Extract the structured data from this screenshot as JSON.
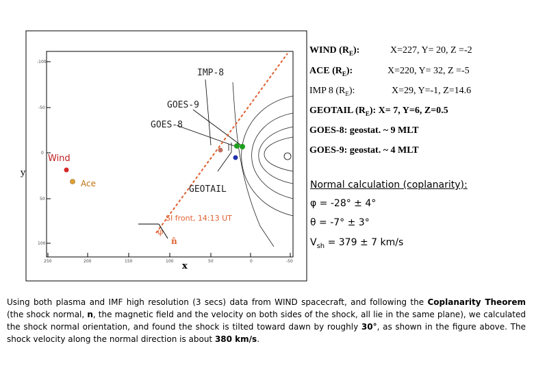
{
  "plot": {
    "axis_y_label": "y",
    "axis_x_label": "x",
    "y_ticks": [
      "-100",
      "-50",
      "0",
      "50",
      "100"
    ],
    "x_ticks": [
      "250",
      "200",
      "150",
      "100",
      "50",
      "0",
      "-50"
    ],
    "labels": {
      "imp8": "IMP-8",
      "goes9": "GOES-9",
      "goes8": "GOES-8",
      "wind": "Wind",
      "ace": "Ace",
      "geotail": "GEOTAIL",
      "si_front": "SI front, 14:13 UT",
      "phi": "φ",
      "normal": "n̂"
    },
    "colors": {
      "wind": "#d62828",
      "ace": "#e0a030",
      "goes": "#1f9e1f",
      "geotail": "#2233aa",
      "imp8": "#c04040",
      "front": "#e06030"
    }
  },
  "positions": [
    {
      "name": "WIND",
      "unit": "E",
      "value": "X=227, Y= 20, Z =-2"
    },
    {
      "name": "ACE",
      "unit": "E",
      "value": "X=220, Y= 32, Z =-5"
    },
    {
      "name": "IMP 8",
      "unit": "E",
      "value": "X=29, Y=-1, Z=14.6"
    },
    {
      "name": "GEOTAIL",
      "unit": "E",
      "value": "X= 7, Y=6, Z=0.5"
    }
  ],
  "goes": [
    {
      "name": "GOES-8:",
      "value": "geostat. ~ 9 MLT"
    },
    {
      "name": "GOES-9:",
      "value": "geostat. ~ 4 MLT"
    }
  ],
  "normal_calc": {
    "heading": "Normal calculation (coplanarity):",
    "phi": "φ = -28° ± 4°",
    "theta": "θ = -7° ± 3°",
    "vsh_label": "V",
    "vsh_sub": "sh",
    "vsh_value": " = 379 ± 7 km/s"
  },
  "paragraph": {
    "p1": "Using both plasma and IMF high resolution (3 secs) data from WIND spacecraft, and following the ",
    "b1": "Coplanarity Theorem",
    "p2": " (the shock normal, ",
    "b2": "n",
    "p3": ", the magnetic field and the velocity on both sides of the shock, all lie in the same plane), we calculated the shock normal orientation, and found the shock is tilted toward dawn by roughly ",
    "b3": "30°",
    "p4": ", as shown in the figure above. The shock velocity along the normal direction is about ",
    "b4": "380 km/s",
    "p5": "."
  }
}
